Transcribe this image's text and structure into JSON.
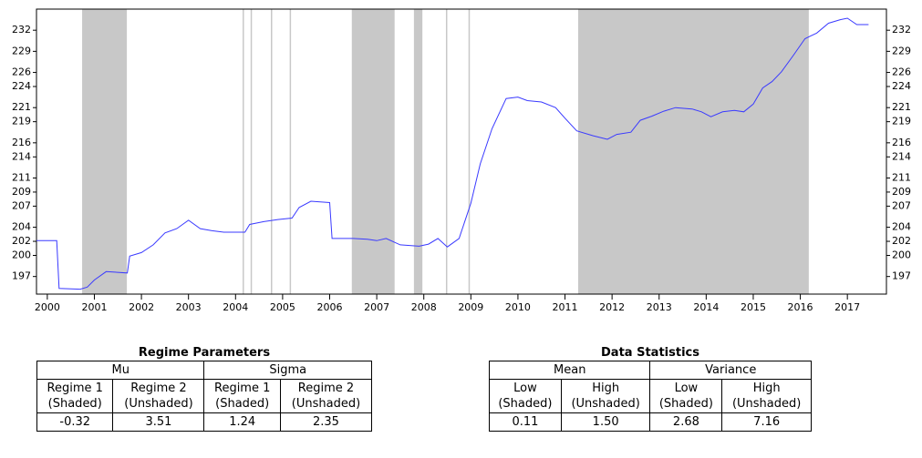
{
  "chart_data": {
    "type": "line",
    "color": "#3a3aff",
    "shade_color": "#c8c8c8",
    "xlim": [
      1999.77,
      2017.83
    ],
    "xticks": [
      2000,
      2001,
      2002,
      2003,
      2004,
      2005,
      2006,
      2007,
      2008,
      2009,
      2010,
      2011,
      2012,
      2013,
      2014,
      2015,
      2016,
      2017
    ],
    "ylim": [
      194.5,
      235
    ],
    "yticks": [
      197,
      200,
      202,
      204,
      207,
      209,
      211,
      214,
      216,
      219,
      221,
      224,
      226,
      229,
      232
    ],
    "regimes": [
      [
        2000.74,
        2001.69
      ],
      [
        2004.15,
        2004.16
      ],
      [
        2004.32,
        2004.33
      ],
      [
        2004.75,
        2004.76
      ],
      [
        2005.15,
        2005.16
      ],
      [
        2006.47,
        2007.38
      ],
      [
        2007.79,
        2007.97
      ],
      [
        2008.47,
        2008.48
      ],
      [
        2008.95,
        2008.96
      ],
      [
        2011.28,
        2016.18
      ]
    ],
    "x": [
      1999.77,
      2000.2,
      2000.25,
      2000.7,
      2000.85,
      2001.0,
      2001.25,
      2001.7,
      2001.75,
      2002.0,
      2002.25,
      2002.5,
      2002.75,
      2003.0,
      2003.25,
      2003.5,
      2003.75,
      2004.2,
      2004.3,
      2004.6,
      2004.9,
      2005.2,
      2005.35,
      2005.6,
      2005.8,
      2006.0,
      2006.05,
      2006.5,
      2006.8,
      2007.0,
      2007.2,
      2007.5,
      2007.9,
      2008.1,
      2008.3,
      2008.5,
      2008.75,
      2009.0,
      2009.2,
      2009.45,
      2009.75,
      2010.0,
      2010.2,
      2010.5,
      2010.8,
      2011.0,
      2011.25,
      2011.6,
      2011.9,
      2012.1,
      2012.4,
      2012.6,
      2012.85,
      2013.1,
      2013.35,
      2013.7,
      2013.9,
      2014.1,
      2014.35,
      2014.6,
      2014.8,
      2015.0,
      2015.2,
      2015.4,
      2015.6,
      2015.85,
      2016.1,
      2016.35,
      2016.6,
      2016.85,
      2017.0,
      2017.2,
      2017.45
    ],
    "values": [
      202.1,
      202.1,
      195.3,
      195.2,
      195.5,
      196.5,
      197.7,
      197.5,
      199.9,
      200.4,
      201.5,
      203.2,
      203.8,
      205.0,
      203.8,
      203.5,
      203.3,
      203.3,
      204.4,
      204.8,
      205.1,
      205.3,
      206.8,
      207.7,
      207.6,
      207.5,
      202.4,
      202.4,
      202.3,
      202.1,
      202.4,
      201.5,
      201.3,
      201.6,
      202.4,
      201.2,
      202.4,
      207.4,
      213.0,
      218.0,
      222.3,
      222.5,
      222.0,
      221.8,
      221.0,
      219.5,
      217.7,
      217.0,
      216.5,
      217.2,
      217.5,
      219.2,
      219.8,
      220.5,
      221.0,
      220.8,
      220.4,
      219.7,
      220.4,
      220.6,
      220.4,
      221.5,
      223.8,
      224.7,
      226.1,
      228.4,
      230.8,
      231.6,
      233.0,
      233.5,
      233.7,
      232.8,
      232.8
    ]
  },
  "tables": [
    {
      "title": "Regime Parameters",
      "groups": [
        "Mu",
        "Sigma"
      ],
      "columns": [
        [
          "Regime 1",
          "(Shaded)"
        ],
        [
          "Regime 2",
          "(Unshaded)"
        ],
        [
          "Regime 1",
          "(Shaded)"
        ],
        [
          "Regime 2",
          "(Unshaded)"
        ]
      ],
      "values": [
        "-0.32",
        "3.51",
        "1.24",
        "2.35"
      ]
    },
    {
      "title": "Data Statistics",
      "groups": [
        "Mean",
        "Variance"
      ],
      "columns": [
        [
          "Low",
          "(Shaded)"
        ],
        [
          "High",
          "(Unshaded)"
        ],
        [
          "Low",
          "(Shaded)"
        ],
        [
          "High",
          "(Unshaded)"
        ]
      ],
      "values": [
        "0.11",
        "1.50",
        "2.68",
        "7.16"
      ]
    }
  ]
}
